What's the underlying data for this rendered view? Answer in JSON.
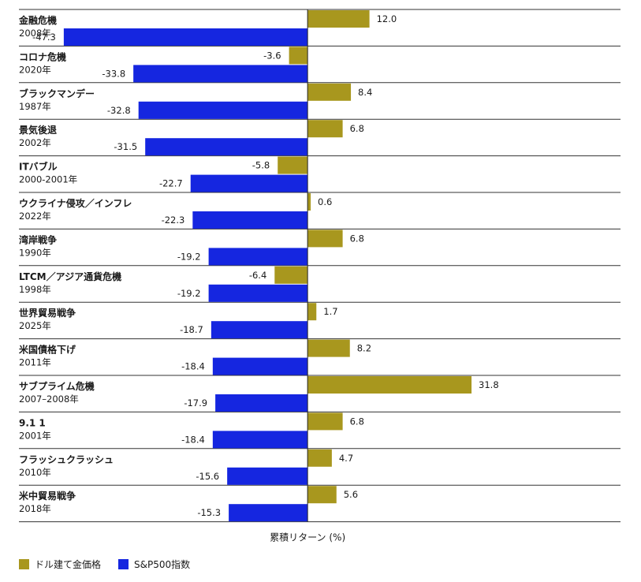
{
  "chart_data": {
    "type": "bar",
    "orientation": "horizontal",
    "xlabel": "累積リターン (%)",
    "ylabel": "",
    "categories": [
      {
        "name": "金融危機",
        "period": "2008年"
      },
      {
        "name": "コロナ危機",
        "period": "2020年"
      },
      {
        "name": "ブラックマンデー",
        "period": "1987年"
      },
      {
        "name": "景気後退",
        "period": "2002年"
      },
      {
        "name": "ITバブル",
        "period": "2000-2001年"
      },
      {
        "name": "ウクライナ侵攻／インフレ",
        "period": "2022年"
      },
      {
        "name": "湾岸戦争",
        "period": "1990年"
      },
      {
        "name": "LTCM／アジア通貨危機",
        "period": "1998年"
      },
      {
        "name": "世界貿易戦争",
        "period": "2025年"
      },
      {
        "name": "米国債格下げ",
        "period": "2011年"
      },
      {
        "name": "サブプライム危機",
        "period": "2007–2008年"
      },
      {
        "name": "9.1 1",
        "period": "2001年"
      },
      {
        "name": "フラッシュクラッシュ",
        "period": "2010年"
      },
      {
        "name": "米中貿易戦争",
        "period": "2018年"
      }
    ],
    "series": [
      {
        "name": "ドル建て金価格",
        "color": "#a8971e",
        "values": [
          12.0,
          -3.6,
          8.4,
          6.8,
          -5.8,
          0.6,
          6.8,
          -6.4,
          1.7,
          8.2,
          31.8,
          6.8,
          4.7,
          5.6
        ],
        "labels": [
          "12.0",
          "-3.6",
          "8.4",
          "6.8",
          "-5.8",
          "0.6",
          "6.8",
          "-6.4",
          "1.7",
          "8.2",
          "31.8",
          "6.8",
          "4.7",
          "5.6"
        ]
      },
      {
        "name": "S&P500指数",
        "color": "#1526e0",
        "values": [
          -47.3,
          -33.8,
          -32.8,
          -31.5,
          -22.7,
          -22.3,
          -19.2,
          -19.2,
          -18.7,
          -18.4,
          -17.9,
          -18.4,
          -15.6,
          -15.3
        ],
        "labels": [
          "-47.3",
          "-33.8",
          "-32.8",
          "-31.5",
          "-22.7",
          "-22.3",
          "-19.2",
          "-19.2",
          "-18.7",
          "-18.4",
          "-17.9",
          "-18.4",
          "-15.6",
          "-15.3"
        ]
      }
    ],
    "xlim": [
      -56.0,
      60.7
    ],
    "grid": false,
    "legend_position": "bottom-left"
  }
}
